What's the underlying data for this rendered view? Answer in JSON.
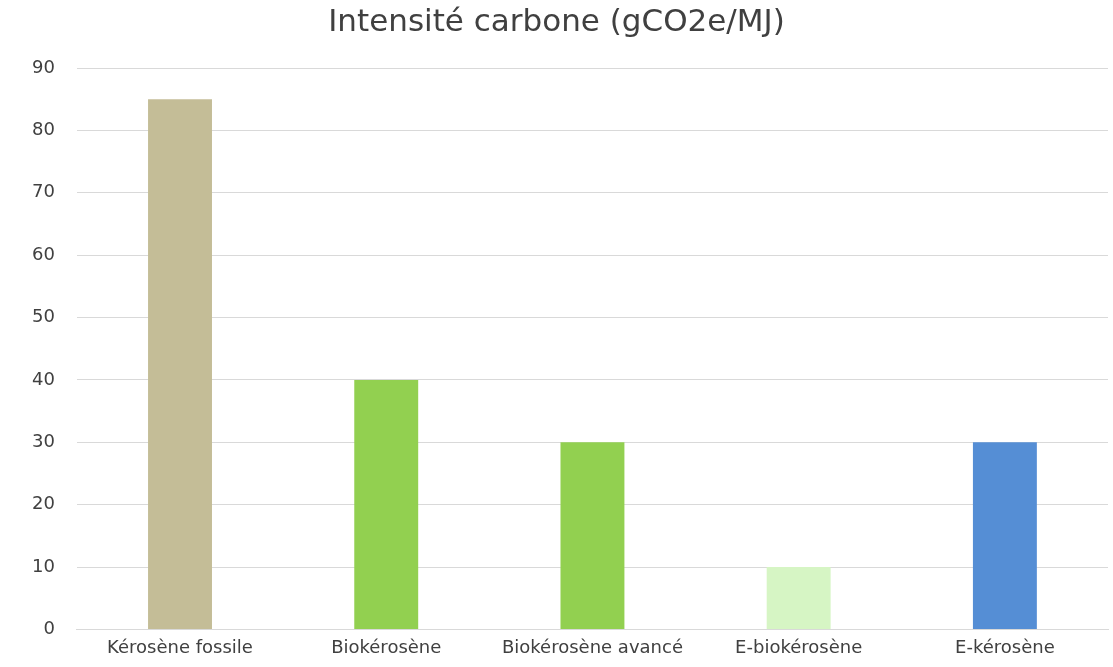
{
  "chart_data": {
    "type": "bar",
    "title": "Intensité carbone (gCO2e/MJ)",
    "categories": [
      "Kérosène fossile",
      "Biokérosène",
      "Biokérosène avancé",
      "E-biokérosène",
      "E-kérosène"
    ],
    "values": [
      85,
      40,
      30,
      10,
      30
    ],
    "colors": [
      "#c4bd97",
      "#92d050",
      "#92d050",
      "#d6f5c4",
      "#558ed5"
    ],
    "ylim": [
      0,
      90
    ],
    "yticks": [
      0,
      10,
      20,
      30,
      40,
      50,
      60,
      70,
      80,
      90
    ],
    "grid": "y"
  }
}
